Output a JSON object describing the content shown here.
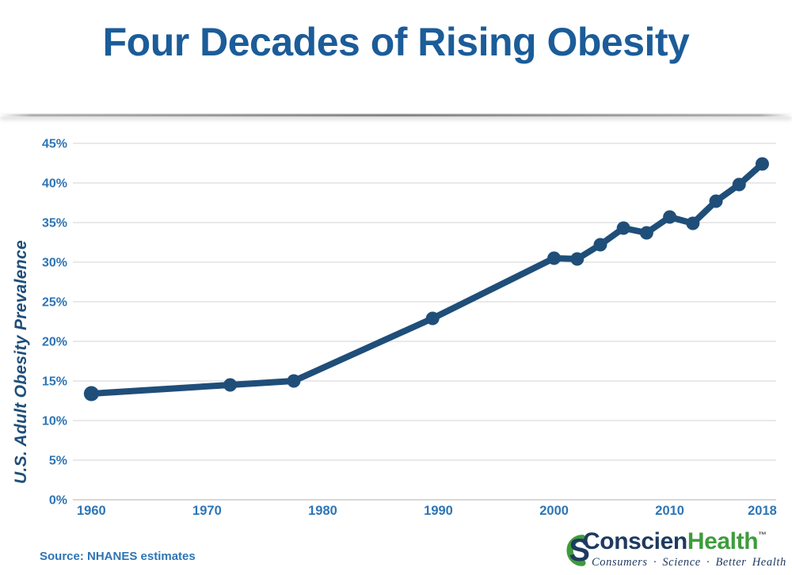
{
  "header": {
    "title": "Four Decades of Rising Obesity"
  },
  "chart_data": {
    "type": "line",
    "title": "Four Decades of Rising Obesity",
    "xlabel": "",
    "ylabel": "U.S. Adult Obesity Prevalence",
    "ylim": [
      0,
      45
    ],
    "xlim": [
      1958.4,
      2019.2
    ],
    "grid": "horizontal",
    "legend": "none",
    "line_color": "#1f4e79",
    "marker_color": "#1f4e79",
    "tick_label_color": "#2e75b6",
    "gridline_color": "#dcdcdc",
    "axis_line_color": "#bfbfbf",
    "y_ticks": [
      {
        "label": "0%",
        "value": 0
      },
      {
        "label": "5%",
        "value": 5
      },
      {
        "label": "10%",
        "value": 10
      },
      {
        "label": "15%",
        "value": 15
      },
      {
        "label": "20%",
        "value": 20
      },
      {
        "label": "25%",
        "value": 25
      },
      {
        "label": "30%",
        "value": 30
      },
      {
        "label": "35%",
        "value": 35
      },
      {
        "label": "40%",
        "value": 40
      },
      {
        "label": "45%",
        "value": 45
      }
    ],
    "x_ticks": [
      {
        "label": "1960",
        "value": 1960
      },
      {
        "label": "1970",
        "value": 1970
      },
      {
        "label": "1980",
        "value": 1980
      },
      {
        "label": "1990",
        "value": 1990
      },
      {
        "label": "2000",
        "value": 2000
      },
      {
        "label": "2010",
        "value": 2010
      },
      {
        "label": "2018",
        "value": 2018
      }
    ],
    "series": [
      {
        "name": "U.S. Adult Obesity Prevalence",
        "points": [
          {
            "x": 1960,
            "y": 13.4
          },
          {
            "x": 1972,
            "y": 14.5
          },
          {
            "x": 1977.5,
            "y": 15.0
          },
          {
            "x": 1989.5,
            "y": 22.9
          },
          {
            "x": 2000,
            "y": 30.5
          },
          {
            "x": 2002,
            "y": 30.4
          },
          {
            "x": 2004,
            "y": 32.2
          },
          {
            "x": 2006,
            "y": 34.3
          },
          {
            "x": 2008,
            "y": 33.7
          },
          {
            "x": 2010,
            "y": 35.7
          },
          {
            "x": 2012,
            "y": 34.9
          },
          {
            "x": 2014,
            "y": 37.7
          },
          {
            "x": 2016,
            "y": 39.8
          },
          {
            "x": 2018,
            "y": 42.4
          }
        ]
      }
    ]
  },
  "footer": {
    "source": "Source: NHANES estimates",
    "logo": {
      "monogram_s": "S",
      "name_part1": "Conscien",
      "name_part2": "Health",
      "trademark": "™",
      "tagline": "Consumers · Science · Better Health",
      "navy": "#1e3a5f",
      "green": "#3e9c3c"
    }
  }
}
